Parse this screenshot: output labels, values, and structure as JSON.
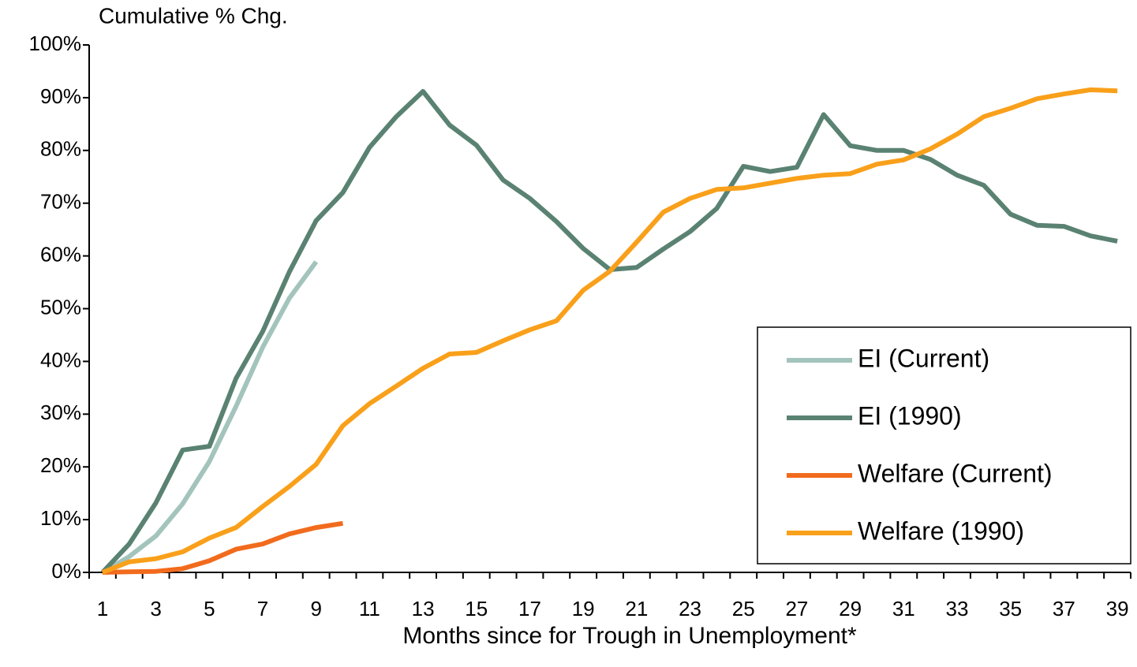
{
  "chart_data": {
    "type": "line",
    "y_label": "Cumulative % Chg.",
    "x_label": "Months since for Trough in Unemployment*",
    "categories": [
      1,
      null,
      3,
      null,
      5,
      null,
      7,
      null,
      9,
      null,
      11,
      null,
      13,
      null,
      15,
      null,
      17,
      null,
      19,
      null,
      21,
      null,
      23,
      null,
      25,
      null,
      27,
      null,
      29,
      null,
      31,
      null,
      33,
      null,
      35,
      null,
      37,
      null,
      39
    ],
    "ylim": [
      0,
      100
    ],
    "yticks": [
      {
        "value": 0,
        "label": "0%"
      },
      {
        "value": 10,
        "label": "10%"
      },
      {
        "value": 20,
        "label": "20%"
      },
      {
        "value": 30,
        "label": "30%"
      },
      {
        "value": 40,
        "label": "40%"
      },
      {
        "value": 50,
        "label": "50%"
      },
      {
        "value": 60,
        "label": "60%"
      },
      {
        "value": 70,
        "label": "70%"
      },
      {
        "value": 80,
        "label": "80%"
      },
      {
        "value": 90,
        "label": "90%"
      },
      {
        "value": 100,
        "label": "100%"
      }
    ],
    "grid": false,
    "legend": "lower right",
    "series": [
      {
        "name": "EI (Current)",
        "color": "#a3c4bc",
        "values": [
          0,
          3,
          6.9,
          13,
          21,
          31.5,
          42.7,
          52,
          58.9,
          null,
          null,
          null,
          null,
          null,
          null,
          null,
          null,
          null,
          null,
          null,
          null,
          null,
          null,
          null,
          null,
          null,
          null,
          null,
          null,
          null,
          null,
          null,
          null,
          null,
          null,
          null,
          null,
          null,
          null
        ]
      },
      {
        "name": "EI (1990)",
        "color": "#5a8272",
        "values": [
          0,
          5.4,
          13.2,
          23.2,
          23.9,
          36.8,
          45.7,
          57,
          66.7,
          72,
          80.6,
          86.4,
          91.2,
          84.8,
          81,
          74.4,
          70.9,
          66.5,
          61.4,
          57.4,
          57.8,
          61.3,
          64.6,
          69,
          77,
          76,
          76.8,
          86.8,
          80.9,
          80,
          80,
          78.3,
          75.3,
          73.4,
          67.9,
          65.8,
          65.6,
          63.8,
          62.8
        ]
      },
      {
        "name": "Welfare (Current)",
        "color": "#f26b1d",
        "values": [
          0,
          0.1,
          0.2,
          0.7,
          2.2,
          4.4,
          5.4,
          7.3,
          8.5,
          9.3,
          null,
          null,
          null,
          null,
          null,
          null,
          null,
          null,
          null,
          null,
          null,
          null,
          null,
          null,
          null,
          null,
          null,
          null,
          null,
          null,
          null,
          null,
          null,
          null,
          null,
          null,
          null,
          null,
          null
        ]
      },
      {
        "name": "Welfare (1990)",
        "color": "#f9a01b",
        "values": [
          0,
          2,
          2.6,
          3.9,
          6.5,
          8.5,
          12.5,
          16.3,
          20.5,
          27.8,
          32,
          35.3,
          38.7,
          41.4,
          41.7,
          43.9,
          46,
          47.7,
          53.5,
          57.1,
          62.6,
          68.3,
          70.9,
          72.6,
          72.9,
          73.8,
          74.7,
          75.3,
          75.6,
          77.4,
          78.2,
          80.3,
          83.1,
          86.4,
          88,
          89.8,
          90.7,
          91.5,
          91.3
        ]
      }
    ]
  }
}
